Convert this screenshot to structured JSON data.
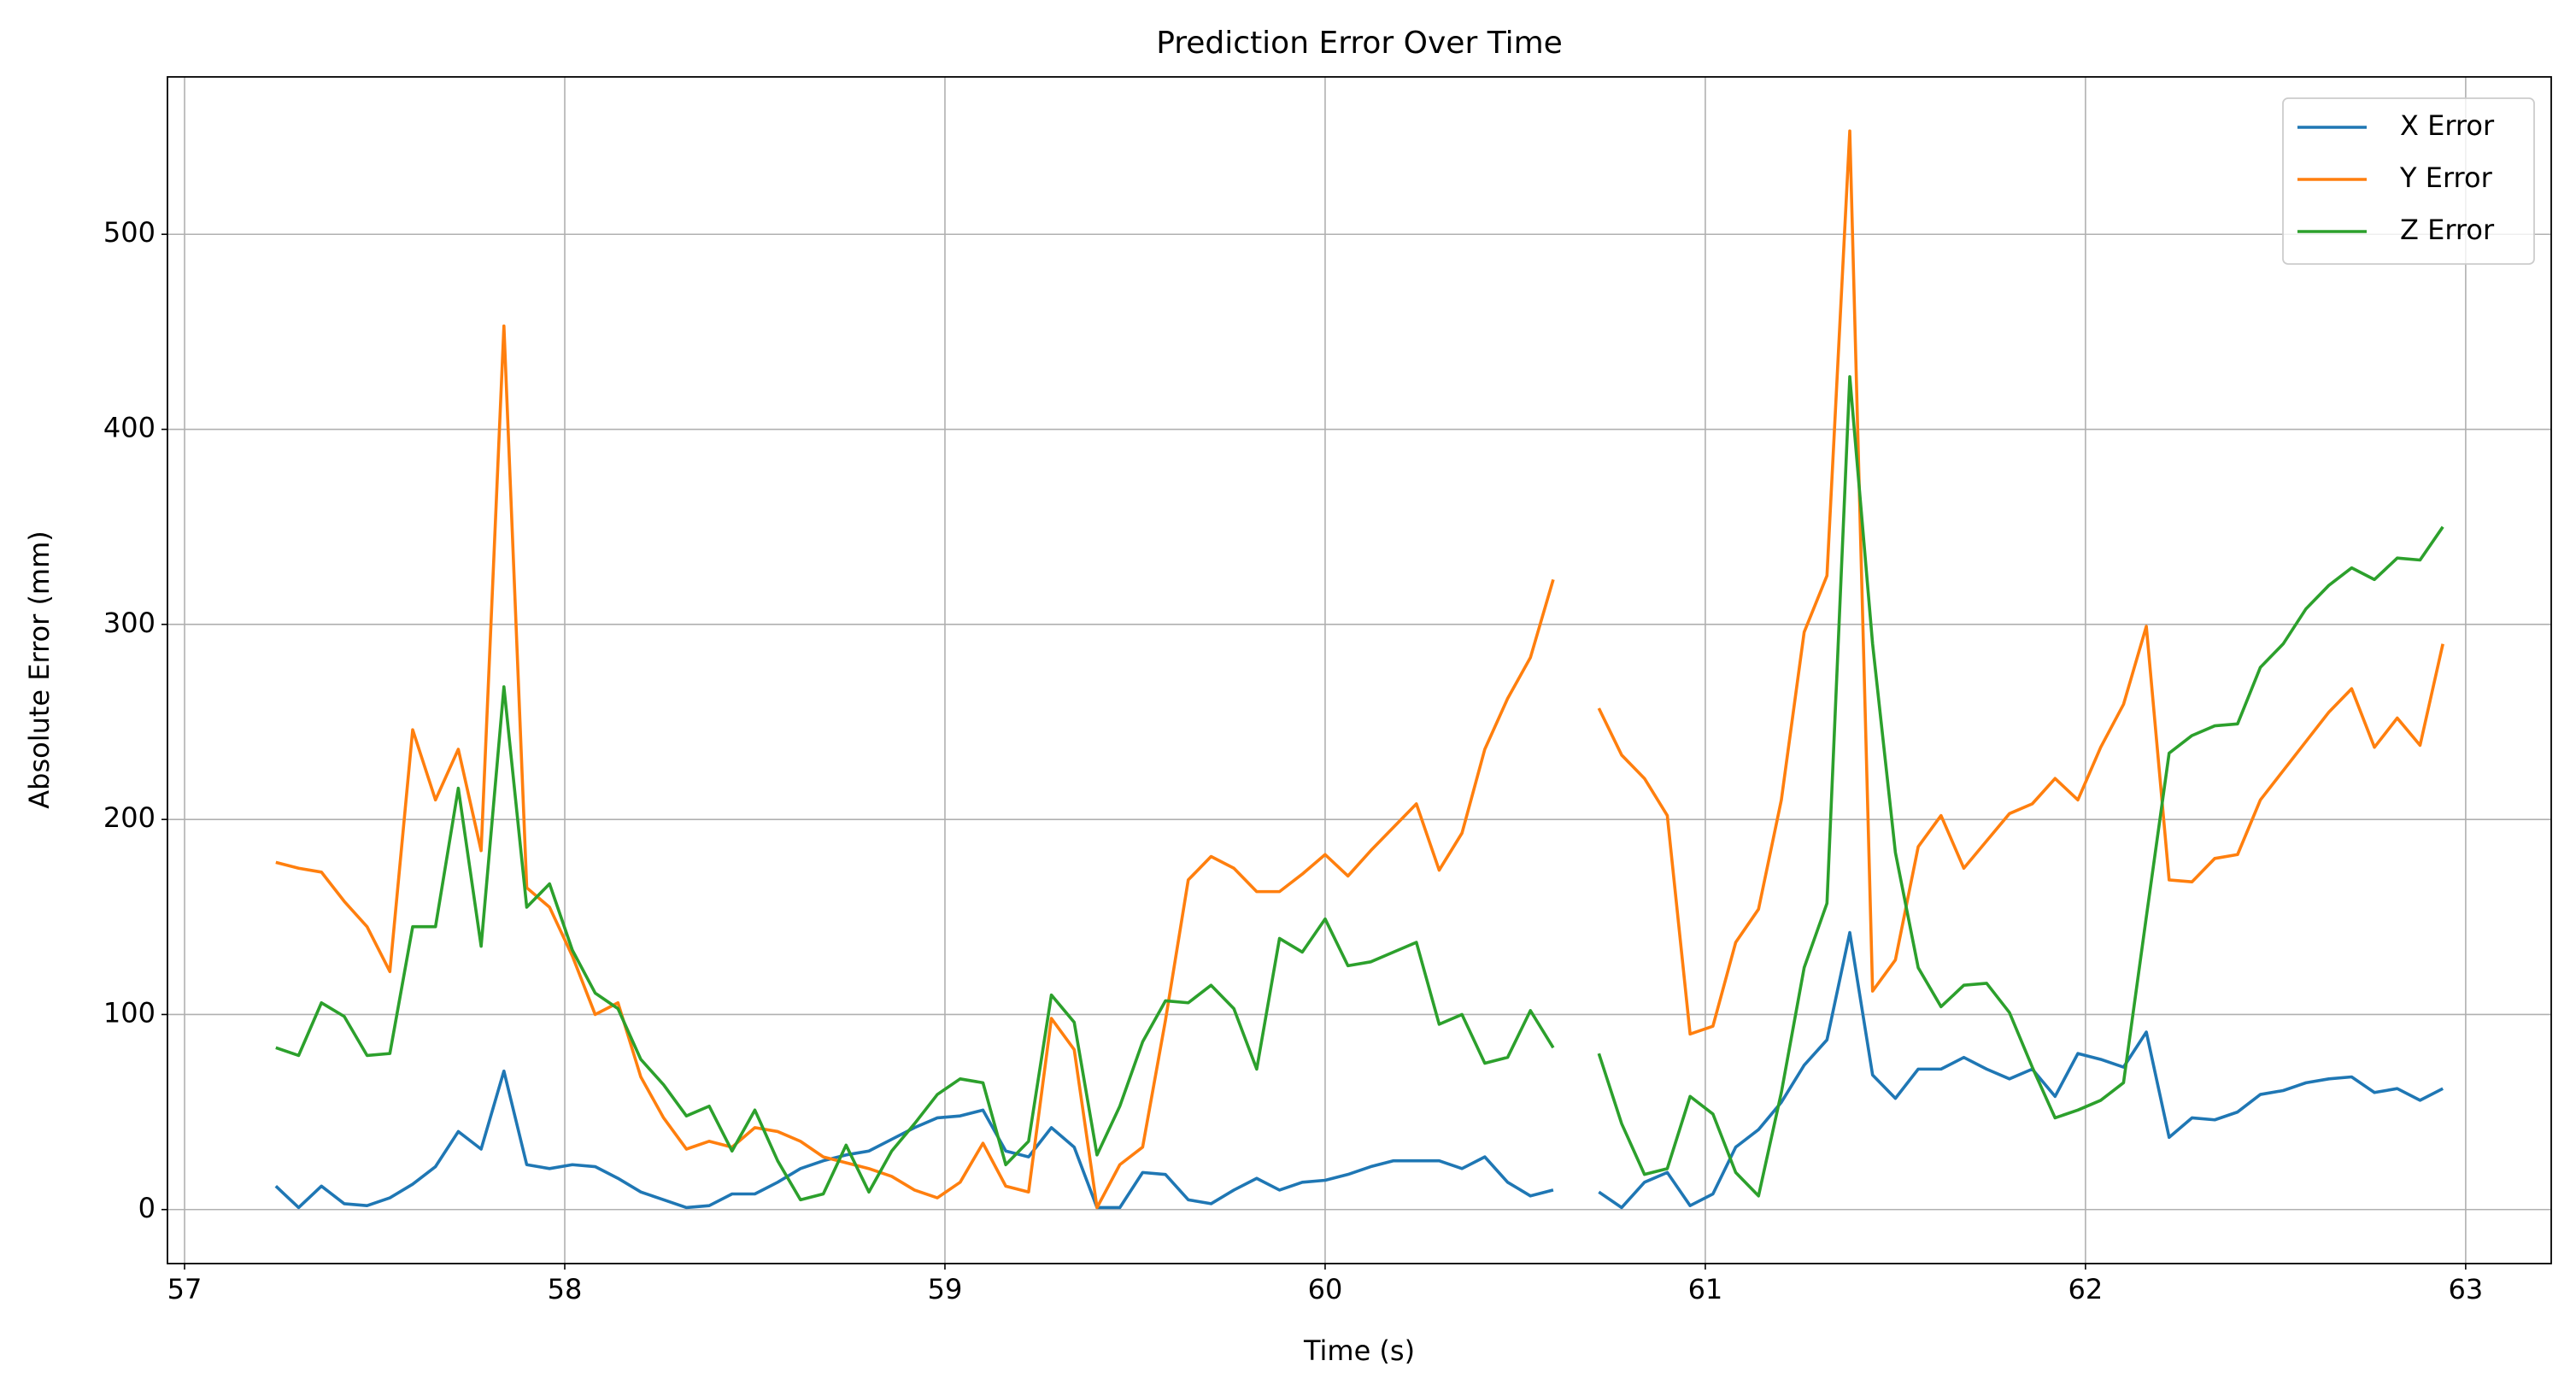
{
  "chart_data": {
    "type": "line",
    "title": "Prediction Error Over Time",
    "x_label": "Time (s)",
    "y_label": "Absolute Error (mm)",
    "x": [
      57.24,
      57.3,
      57.36,
      57.42,
      57.48,
      57.54,
      57.6,
      57.66,
      57.72,
      57.78,
      57.84,
      57.9,
      57.96,
      58.02,
      58.08,
      58.14,
      58.2,
      58.26,
      58.32,
      58.38,
      58.44,
      58.5,
      58.56,
      58.62,
      58.68,
      58.74,
      58.8,
      58.86,
      58.92,
      58.98,
      59.04,
      59.1,
      59.16,
      59.22,
      59.28,
      59.34,
      59.4,
      59.46,
      59.52,
      59.58,
      59.64,
      59.7,
      59.76,
      59.82,
      59.88,
      59.94,
      60,
      60.06,
      60.12,
      60.18,
      60.24,
      60.3,
      60.36,
      60.42,
      60.48,
      60.54,
      60.6,
      60.66,
      60.72,
      60.78,
      60.84,
      60.9,
      60.96,
      61.02,
      61.08,
      61.14,
      61.2,
      61.26,
      61.32,
      61.38,
      61.44,
      61.5,
      61.56,
      61.62,
      61.68,
      61.74,
      61.8,
      61.86,
      61.92,
      61.98,
      62.04,
      62.1,
      62.16,
      62.22,
      62.28,
      62.34,
      62.4,
      62.46,
      62.52,
      62.58,
      62.64,
      62.7,
      62.76,
      62.82,
      62.88,
      62.94
    ],
    "series": [
      {
        "name": "X Error",
        "color": "#1f77b4",
        "values": [
          12,
          1,
          12,
          3,
          2,
          6,
          13,
          22,
          40,
          31,
          71,
          23,
          21,
          23,
          22,
          16,
          9,
          5,
          1,
          2,
          8,
          8,
          14,
          21,
          25,
          28,
          30,
          36,
          42,
          47,
          48,
          51,
          30,
          27,
          42,
          32,
          1,
          1,
          19,
          18,
          5,
          3,
          10,
          16,
          10,
          14,
          15,
          18,
          22,
          25,
          25,
          25,
          21,
          27,
          14,
          7,
          10,
          null,
          9,
          1,
          14,
          19,
          2,
          8,
          32,
          41,
          55,
          74,
          87,
          142,
          69,
          57,
          72,
          72,
          78,
          72,
          67,
          72,
          58,
          80,
          77,
          73,
          91,
          37,
          47,
          46,
          50,
          59,
          61,
          65,
          67,
          68,
          60,
          62,
          56,
          62
        ]
      },
      {
        "name": "Y Error",
        "color": "#ff7f0e",
        "values": [
          178,
          175,
          173,
          158,
          145,
          122,
          246,
          210,
          236,
          184,
          453,
          165,
          155,
          130,
          100,
          106,
          68,
          47,
          31,
          35,
          32,
          42,
          40,
          35,
          27,
          24,
          21,
          17,
          10,
          6,
          14,
          34,
          12,
          9,
          98,
          82,
          1,
          23,
          32,
          97,
          169,
          181,
          175,
          163,
          163,
          172,
          182,
          171,
          184,
          196,
          208,
          174,
          193,
          236,
          262,
          283,
          323,
          null,
          257,
          233,
          221,
          202,
          90,
          94,
          137,
          154,
          210,
          296,
          325,
          553,
          112,
          128,
          186,
          202,
          175,
          189,
          203,
          208,
          221,
          210,
          237,
          259,
          299,
          169,
          168,
          180,
          182,
          210,
          225,
          240,
          255,
          267,
          237,
          252,
          238,
          290
        ]
      },
      {
        "name": "Z Error",
        "color": "#2ca02c",
        "values": [
          83,
          79,
          106,
          99,
          79,
          80,
          145,
          145,
          216,
          135,
          268,
          155,
          167,
          133,
          111,
          103,
          77,
          64,
          48,
          53,
          30,
          51,
          25,
          5,
          8,
          33,
          9,
          30,
          44,
          59,
          67,
          65,
          23,
          35,
          110,
          96,
          28,
          53,
          86,
          107,
          106,
          115,
          103,
          72,
          139,
          132,
          149,
          125,
          127,
          132,
          137,
          95,
          100,
          75,
          78,
          102,
          83,
          null,
          80,
          44,
          18,
          21,
          58,
          49,
          19,
          7,
          60,
          124,
          157,
          427,
          290,
          183,
          124,
          104,
          115,
          116,
          101,
          73,
          47,
          51,
          56,
          65,
          150,
          234,
          243,
          248,
          249,
          278,
          290,
          308,
          320,
          329,
          323,
          334,
          333,
          350
        ]
      }
    ],
    "xlim": [
      56.955,
      63.225
    ],
    "ylim": [
      -27.7,
      580.7
    ],
    "xticks": [
      57,
      58,
      59,
      60,
      61,
      62,
      63
    ],
    "yticks": [
      0,
      100,
      200,
      300,
      400,
      500
    ],
    "grid": true,
    "legend": "upper right"
  }
}
